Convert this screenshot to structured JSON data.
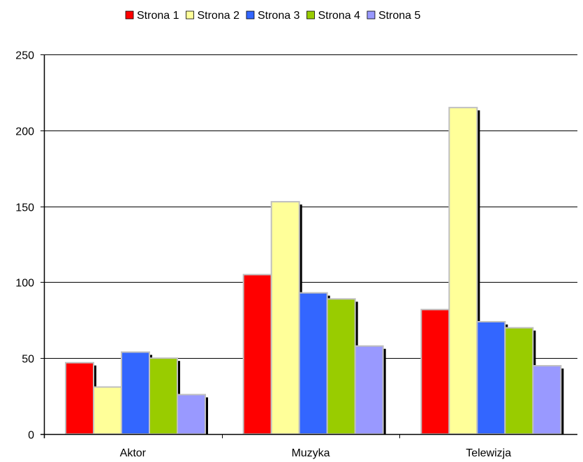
{
  "chart_data": {
    "type": "bar",
    "title": "",
    "xlabel": "",
    "ylabel": "",
    "categories": [
      "Aktor",
      "Muzyka",
      "Telewizja"
    ],
    "series": [
      {
        "name": "Strona 1",
        "color": "#ff0000",
        "values": [
          47,
          105,
          82
        ]
      },
      {
        "name": "Strona 2",
        "color": "#ffff99",
        "values": [
          31,
          153,
          215
        ]
      },
      {
        "name": "Strona 3",
        "color": "#3366ff",
        "values": [
          54,
          93,
          74
        ]
      },
      {
        "name": "Strona 4",
        "color": "#99cc00",
        "values": [
          50,
          89,
          70
        ]
      },
      {
        "name": "Strona 5",
        "color": "#9999ff",
        "values": [
          26,
          58,
          45
        ]
      }
    ],
    "ylim": [
      0,
      250
    ],
    "yticks": [
      0,
      50,
      100,
      150,
      200,
      250
    ],
    "grid": true,
    "legend": "top",
    "bar_style": "3d-shadow"
  }
}
